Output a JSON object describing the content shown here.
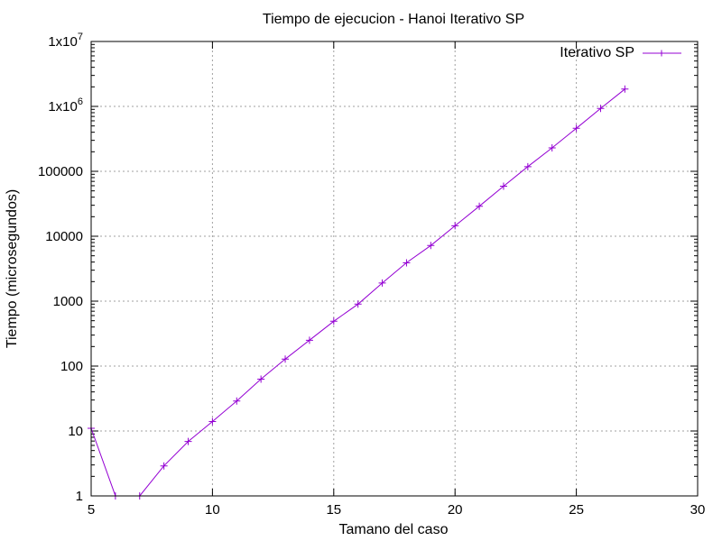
{
  "chart_data": {
    "type": "line",
    "title": "Tiempo de ejecucion - Hanoi Iterativo SP",
    "xlabel": "Tamano del caso",
    "ylabel": "Tiempo (microsegundos)",
    "xlim": [
      5,
      30
    ],
    "ylim": [
      1,
      10000000
    ],
    "yscale": "log",
    "grid": true,
    "legend_position": "top-right",
    "x_ticks": [
      {
        "value": 5,
        "label": "5"
      },
      {
        "value": 10,
        "label": "10"
      },
      {
        "value": 15,
        "label": "15"
      },
      {
        "value": 20,
        "label": "20"
      },
      {
        "value": 25,
        "label": "25"
      },
      {
        "value": 30,
        "label": "30"
      }
    ],
    "y_ticks": [
      {
        "value": 1,
        "label": "1",
        "sup": ""
      },
      {
        "value": 10,
        "label": "10",
        "sup": ""
      },
      {
        "value": 100,
        "label": "100",
        "sup": ""
      },
      {
        "value": 1000,
        "label": "1000",
        "sup": ""
      },
      {
        "value": 10000,
        "label": "10000",
        "sup": ""
      },
      {
        "value": 100000,
        "label": "100000",
        "sup": ""
      },
      {
        "value": 1000000,
        "label": "1x10",
        "sup": "6"
      },
      {
        "value": 10000000,
        "label": "1x10",
        "sup": "7"
      }
    ],
    "series": [
      {
        "name": "Iterativo SP",
        "color": "#9400d3",
        "marker": "plus",
        "x": [
          5,
          6,
          7,
          8,
          9,
          10,
          11,
          12,
          13,
          14,
          15,
          16,
          17,
          18,
          19,
          20,
          21,
          22,
          23,
          24,
          25,
          26,
          27
        ],
        "y": [
          11,
          1,
          1,
          2.9,
          6.9,
          14,
          29,
          63,
          128,
          250,
          490,
          900,
          1900,
          3900,
          7200,
          14500,
          29000,
          59000,
          118000,
          230000,
          460000,
          930000,
          1850000
        ]
      }
    ]
  }
}
